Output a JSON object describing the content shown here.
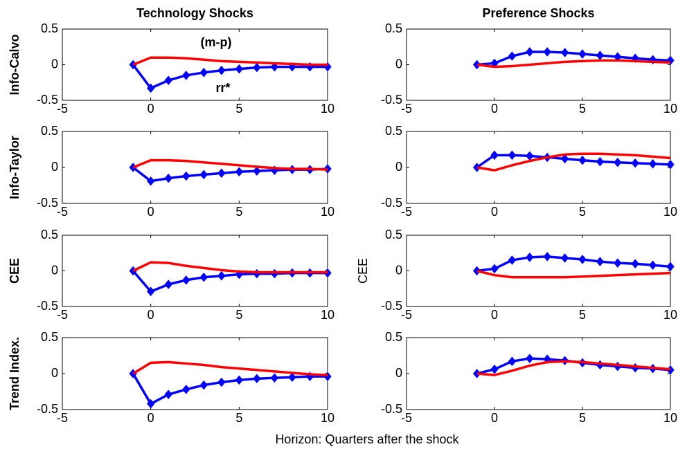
{
  "xlabel": "Horizon: Quarters after the shock",
  "chart_data": [
    {
      "type": "line",
      "title": "Technology Shocks",
      "ylabel": "Info-Calvo",
      "annotations": [
        "(m-p)",
        "rr*"
      ],
      "x": [
        -1,
        0,
        1,
        2,
        3,
        4,
        5,
        6,
        7,
        8,
        9,
        10
      ],
      "xlim": [
        -5,
        10
      ],
      "xticks": [
        -5,
        0,
        5,
        10
      ],
      "ylim": [
        -0.5,
        0.5
      ],
      "yticks": [
        -0.5,
        0,
        0.5
      ],
      "series": [
        {
          "color": "#0000ff",
          "marker": "diamond",
          "values": [
            0,
            -0.33,
            -0.22,
            -0.15,
            -0.11,
            -0.08,
            -0.06,
            -0.04,
            -0.03,
            -0.03,
            -0.03,
            -0.03
          ]
        },
        {
          "color": "#ff0000",
          "values": [
            0,
            0.1,
            0.1,
            0.09,
            0.07,
            0.05,
            0.04,
            0.03,
            0.02,
            0.01,
            0,
            0
          ]
        }
      ]
    },
    {
      "type": "line",
      "title": "Preference Shocks",
      "x": [
        -1,
        0,
        1,
        2,
        3,
        4,
        5,
        6,
        7,
        8,
        9,
        10
      ],
      "xlim": [
        -5,
        10
      ],
      "xticks": [
        -5,
        0,
        5,
        10
      ],
      "ylim": [
        -0.5,
        0.5
      ],
      "yticks": [
        -0.5,
        0,
        0.5
      ],
      "series": [
        {
          "color": "#0000ff",
          "marker": "diamond",
          "values": [
            0,
            0.02,
            0.12,
            0.18,
            0.18,
            0.17,
            0.15,
            0.13,
            0.11,
            0.09,
            0.07,
            0.06
          ]
        },
        {
          "color": "#ff0000",
          "values": [
            0,
            -0.03,
            -0.02,
            0,
            0.02,
            0.04,
            0.05,
            0.06,
            0.06,
            0.05,
            0.04,
            0.03
          ]
        }
      ]
    },
    {
      "type": "line",
      "ylabel": "Info-Taylor",
      "x": [
        -1,
        0,
        1,
        2,
        3,
        4,
        5,
        6,
        7,
        8,
        9,
        10
      ],
      "xlim": [
        -5,
        10
      ],
      "xticks": [
        -5,
        0,
        5,
        10
      ],
      "ylim": [
        -0.5,
        0.5
      ],
      "yticks": [
        -0.5,
        0,
        0.5
      ],
      "series": [
        {
          "color": "#0000ff",
          "marker": "diamond",
          "values": [
            0,
            -0.19,
            -0.15,
            -0.12,
            -0.1,
            -0.08,
            -0.06,
            -0.05,
            -0.04,
            -0.03,
            -0.03,
            -0.02
          ]
        },
        {
          "color": "#ff0000",
          "values": [
            0,
            0.1,
            0.1,
            0.09,
            0.07,
            0.05,
            0.03,
            0.01,
            -0.01,
            -0.02,
            -0.02,
            -0.03
          ]
        }
      ]
    },
    {
      "type": "line",
      "x": [
        -1,
        0,
        1,
        2,
        3,
        4,
        5,
        6,
        7,
        8,
        9,
        10
      ],
      "xlim": [
        -5,
        10
      ],
      "xticks": [
        -5,
        0,
        5,
        10
      ],
      "ylim": [
        -0.5,
        0.5
      ],
      "yticks": [
        -0.5,
        0,
        0.5
      ],
      "series": [
        {
          "color": "#0000ff",
          "marker": "diamond",
          "values": [
            0,
            0.17,
            0.17,
            0.16,
            0.14,
            0.12,
            0.1,
            0.08,
            0.07,
            0.06,
            0.05,
            0.04
          ]
        },
        {
          "color": "#ff0000",
          "values": [
            0,
            -0.04,
            0.03,
            0.09,
            0.14,
            0.18,
            0.19,
            0.19,
            0.18,
            0.17,
            0.15,
            0.13
          ]
        }
      ]
    },
    {
      "type": "line",
      "ylabel": "CEE",
      "x": [
        -1,
        0,
        1,
        2,
        3,
        4,
        5,
        6,
        7,
        8,
        9,
        10
      ],
      "xlim": [
        -5,
        10
      ],
      "xticks": [
        -5,
        0,
        5,
        10
      ],
      "ylim": [
        -0.5,
        0.5
      ],
      "yticks": [
        -0.5,
        0,
        0.5
      ],
      "series": [
        {
          "color": "#0000ff",
          "marker": "diamond",
          "values": [
            0,
            -0.29,
            -0.19,
            -0.13,
            -0.09,
            -0.07,
            -0.05,
            -0.04,
            -0.04,
            -0.03,
            -0.03,
            -0.03
          ]
        },
        {
          "color": "#ff0000",
          "values": [
            0,
            0.12,
            0.11,
            0.07,
            0.04,
            0.01,
            -0.01,
            -0.02,
            -0.02,
            -0.02,
            -0.02,
            -0.02
          ]
        }
      ]
    },
    {
      "type": "line",
      "ylabel": "CEE",
      "x": [
        -1,
        0,
        1,
        2,
        3,
        4,
        5,
        6,
        7,
        8,
        9,
        10
      ],
      "xlim": [
        -5,
        10
      ],
      "xticks": [
        -5,
        0,
        5,
        10
      ],
      "ylim": [
        -0.5,
        0.5
      ],
      "yticks": [
        -0.5,
        0,
        0.5
      ],
      "series": [
        {
          "color": "#0000ff",
          "marker": "diamond",
          "values": [
            0,
            0.03,
            0.15,
            0.19,
            0.2,
            0.18,
            0.16,
            0.13,
            0.11,
            0.1,
            0.08,
            0.06
          ]
        },
        {
          "color": "#ff0000",
          "values": [
            0,
            -0.06,
            -0.09,
            -0.09,
            -0.09,
            -0.09,
            -0.08,
            -0.07,
            -0.06,
            -0.05,
            -0.04,
            -0.03
          ]
        }
      ]
    },
    {
      "type": "line",
      "ylabel": "Trend Index.",
      "x": [
        -1,
        0,
        1,
        2,
        3,
        4,
        5,
        6,
        7,
        8,
        9,
        10
      ],
      "xlim": [
        -5,
        10
      ],
      "xticks": [
        -5,
        0,
        5,
        10
      ],
      "ylim": [
        -0.5,
        0.5
      ],
      "yticks": [
        -0.5,
        0,
        0.5
      ],
      "series": [
        {
          "color": "#0000ff",
          "marker": "diamond",
          "values": [
            0,
            -0.42,
            -0.29,
            -0.22,
            -0.16,
            -0.12,
            -0.09,
            -0.07,
            -0.06,
            -0.05,
            -0.04,
            -0.04
          ]
        },
        {
          "color": "#ff0000",
          "values": [
            0,
            0.15,
            0.16,
            0.14,
            0.12,
            0.09,
            0.07,
            0.05,
            0.03,
            0.01,
            -0.01,
            -0.02
          ]
        }
      ]
    },
    {
      "type": "line",
      "x": [
        -1,
        0,
        1,
        2,
        3,
        4,
        5,
        6,
        7,
        8,
        9,
        10
      ],
      "xlim": [
        -5,
        10
      ],
      "xticks": [
        -5,
        0,
        5,
        10
      ],
      "ylim": [
        -0.5,
        0.5
      ],
      "yticks": [
        -0.5,
        0,
        0.5
      ],
      "series": [
        {
          "color": "#0000ff",
          "marker": "diamond",
          "values": [
            0,
            0.06,
            0.17,
            0.21,
            0.2,
            0.18,
            0.15,
            0.12,
            0.1,
            0.08,
            0.07,
            0.05
          ]
        },
        {
          "color": "#ff0000",
          "values": [
            0,
            -0.02,
            0.04,
            0.11,
            0.16,
            0.17,
            0.16,
            0.14,
            0.12,
            0.1,
            0.08,
            0.06
          ]
        }
      ]
    }
  ]
}
